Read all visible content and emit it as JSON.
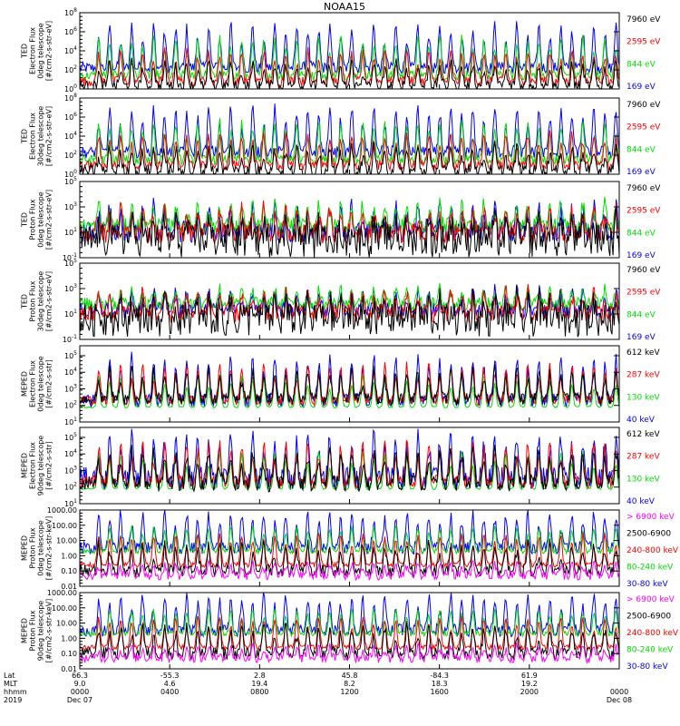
{
  "title": "NOAA15",
  "colors": {
    "black": "#000000",
    "red": "#ff0000",
    "green": "#00dd00",
    "blue": "#0000ff",
    "magenta": "#ff00ff"
  },
  "chart_data": {
    "type": "line",
    "x_ticks": [
      {
        "lat": "66.3",
        "mlt": "9.0",
        "hhmm": "0000",
        "date": "Dec 07"
      },
      {
        "lat": "-55.3",
        "mlt": "4.6",
        "hhmm": "0400",
        "date": ""
      },
      {
        "lat": "2.8",
        "mlt": "19.4",
        "hhmm": "0800",
        "date": ""
      },
      {
        "lat": "45.8",
        "mlt": "8.2",
        "hhmm": "1200",
        "date": ""
      },
      {
        "lat": "-84.3",
        "mlt": "18.3",
        "hhmm": "1600",
        "date": ""
      },
      {
        "lat": "61.9",
        "mlt": "19.2",
        "hhmm": "2000",
        "date": ""
      },
      {
        "lat": "",
        "mlt": "",
        "hhmm": "0000",
        "date": "Dec 08"
      }
    ],
    "row_labels": [
      "Lat",
      "MLT",
      "hhmm",
      "2019"
    ],
    "panels": [
      {
        "ylabel": [
          "TED",
          "Electron Flux",
          "0deg telescope",
          "[#/cm2-s-str-eV]"
        ],
        "yticks": [
          {
            "base": "10",
            "exp": "0"
          },
          {
            "base": "10",
            "exp": "2"
          },
          {
            "base": "10",
            "exp": "4"
          },
          {
            "base": "10",
            "exp": "6"
          },
          {
            "base": "10",
            "exp": "8"
          }
        ],
        "log_range": [
          0,
          8
        ],
        "series": [
          {
            "name": "7960 eV",
            "color": "#000000",
            "baseline": 0.3,
            "noise": 0.6,
            "peak": 2.5
          },
          {
            "name": "2595 eV",
            "color": "#ff0000",
            "baseline": 0.8,
            "noise": 0.5,
            "peak": 3.2
          },
          {
            "name": "844 eV",
            "color": "#00dd00",
            "baseline": 1.4,
            "noise": 0.5,
            "peak": 4.0
          },
          {
            "name": "169 eV",
            "color": "#0000ff",
            "baseline": 2.2,
            "noise": 0.6,
            "peak": 4.6
          }
        ]
      },
      {
        "ylabel": [
          "TED",
          "Electron Flux",
          "30deg telescope",
          "[#/cm2-s-str-eV]"
        ],
        "yticks": [
          {
            "base": "10",
            "exp": "0"
          },
          {
            "base": "10",
            "exp": "2"
          },
          {
            "base": "10",
            "exp": "4"
          },
          {
            "base": "10",
            "exp": "6"
          },
          {
            "base": "10",
            "exp": "8"
          }
        ],
        "log_range": [
          0,
          8
        ],
        "series": [
          {
            "name": "7960 eV",
            "color": "#000000",
            "baseline": 0.3,
            "noise": 0.7,
            "peak": 2.6
          },
          {
            "name": "2595 eV",
            "color": "#ff0000",
            "baseline": 0.9,
            "noise": 0.5,
            "peak": 3.3
          },
          {
            "name": "844 eV",
            "color": "#00dd00",
            "baseline": 1.5,
            "noise": 0.5,
            "peak": 4.0
          },
          {
            "name": "169 eV",
            "color": "#0000ff",
            "baseline": 2.3,
            "noise": 0.6,
            "peak": 4.7
          }
        ]
      },
      {
        "ylabel": [
          "TED",
          "Proton Flux",
          "0deg telescope",
          "[#/cm2-s-str-eV]"
        ],
        "yticks": [
          {
            "base": "10",
            "exp": "-1"
          },
          {
            "base": "10",
            "exp": "1"
          },
          {
            "base": "10",
            "exp": "3"
          },
          {
            "base": "10",
            "exp": "5"
          }
        ],
        "log_range": [
          -1,
          5
        ],
        "series": [
          {
            "name": "7960 eV",
            "color": "#000000",
            "baseline": 0.3,
            "noise": 1.3,
            "peak": 1.5
          },
          {
            "name": "2595 eV",
            "color": "#ff0000",
            "baseline": 0.9,
            "noise": 0.8,
            "peak": 1.9
          },
          {
            "name": "844 eV",
            "color": "#00dd00",
            "baseline": 1.5,
            "noise": 0.6,
            "peak": 1.8
          },
          {
            "name": "169 eV",
            "color": "#0000ff",
            "baseline": 1.0,
            "noise": 0.8,
            "peak": 2.1
          }
        ]
      },
      {
        "ylabel": [
          "TED",
          "Proton Flux",
          "30deg telescope",
          "[#/cm2-s-str-eV]"
        ],
        "yticks": [
          {
            "base": "10",
            "exp": "-1"
          },
          {
            "base": "10",
            "exp": "1"
          },
          {
            "base": "10",
            "exp": "3"
          },
          {
            "base": "10",
            "exp": "5"
          }
        ],
        "log_range": [
          -1,
          5
        ],
        "series": [
          {
            "name": "7960 eV",
            "color": "#000000",
            "baseline": 0.5,
            "noise": 1.3,
            "peak": 1.5
          },
          {
            "name": "2595 eV",
            "color": "#ff0000",
            "baseline": 1.0,
            "noise": 0.7,
            "peak": 1.7
          },
          {
            "name": "844 eV",
            "color": "#00dd00",
            "baseline": 1.8,
            "noise": 0.5,
            "peak": 1.2
          },
          {
            "name": "169 eV",
            "color": "#0000ff",
            "baseline": 1.3,
            "noise": 0.6,
            "peak": 1.6
          }
        ]
      },
      {
        "ylabel": [
          "MEPED",
          "Electron Flux",
          "0deg telescope",
          "[#/cm2-s-str]"
        ],
        "yticks": [
          {
            "base": "10",
            "exp": "1"
          },
          {
            "base": "10",
            "exp": "2"
          },
          {
            "base": "10",
            "exp": "3"
          },
          {
            "base": "10",
            "exp": "4"
          },
          {
            "base": "10",
            "exp": "5"
          }
        ],
        "log_range": [
          1,
          5.6
        ],
        "series": [
          {
            "name": "612 keV",
            "color": "#000000",
            "baseline": 2.4,
            "noise": 0.35,
            "peak": 1.8
          },
          {
            "name": "287 keV",
            "color": "#ff0000",
            "baseline": 2.3,
            "noise": 0.3,
            "peak": 2.2
          },
          {
            "name": "130 keV",
            "color": "#00dd00",
            "baseline": 1.9,
            "noise": 0.05,
            "peak": 2.0
          },
          {
            "name": "40 keV",
            "color": "#0000ff",
            "baseline": 2.3,
            "noise": 0.4,
            "peak": 2.6
          }
        ]
      },
      {
        "ylabel": [
          "MEPED",
          "Electron Flux",
          "90deg telescope",
          "[#/cm2-s-str]"
        ],
        "yticks": [
          {
            "base": "10",
            "exp": "1"
          },
          {
            "base": "10",
            "exp": "2"
          },
          {
            "base": "10",
            "exp": "3"
          },
          {
            "base": "10",
            "exp": "4"
          },
          {
            "base": "10",
            "exp": "5"
          }
        ],
        "log_range": [
          1,
          5.6
        ],
        "series": [
          {
            "name": "612 keV",
            "color": "#000000",
            "baseline": 2.2,
            "noise": 0.5,
            "peak": 2.0
          },
          {
            "name": "287 keV",
            "color": "#ff0000",
            "baseline": 2.3,
            "noise": 0.4,
            "peak": 2.4
          },
          {
            "name": "130 keV",
            "color": "#00dd00",
            "baseline": 1.9,
            "noise": 0.05,
            "peak": 2.3
          },
          {
            "name": "40 keV",
            "color": "#0000ff",
            "baseline": 2.5,
            "noise": 0.7,
            "peak": 2.6
          }
        ]
      },
      {
        "ylabel": [
          "MEPED",
          "Proton Flux",
          "0deg telescope",
          "[#/cm2-s-str-keV]"
        ],
        "yticks": [
          {
            "base": "0.01"
          },
          {
            "base": "0.10"
          },
          {
            "base": "1.00"
          },
          {
            "base": "10.00"
          },
          {
            "base": "100.00"
          },
          {
            "base": "1000.00"
          }
        ],
        "log_range": [
          -2,
          3
        ],
        "series": [
          {
            "name": "> 6900 keV",
            "color": "#ff00ff",
            "baseline": -1.3,
            "noise": 0.3,
            "peak": 0.8
          },
          {
            "name": "2500-6900",
            "color": "#000000",
            "baseline": -1.0,
            "noise": 0.4,
            "peak": 1.8
          },
          {
            "name": "240-800 keV",
            "color": "#ff0000",
            "baseline": -0.6,
            "noise": 0.15,
            "peak": 2.0
          },
          {
            "name": "80-240 keV",
            "color": "#00dd00",
            "baseline": 0.3,
            "noise": 0.15,
            "peak": 1.6
          },
          {
            "name": "30-80 keV",
            "color": "#0000ff",
            "baseline": 0.5,
            "noise": 0.4,
            "peak": 2.3
          }
        ]
      },
      {
        "ylabel": [
          "MEPED",
          "Proton Flux",
          "90deg telescope",
          "[#/cm2-s-str-keV]"
        ],
        "yticks": [
          {
            "base": "0.01"
          },
          {
            "base": "0.10"
          },
          {
            "base": "1.00"
          },
          {
            "base": "10.00"
          },
          {
            "base": "100.00"
          },
          {
            "base": "1000.00"
          }
        ],
        "log_range": [
          -2,
          3
        ],
        "series": [
          {
            "name": "> 6900 keV",
            "color": "#ff00ff",
            "baseline": -1.3,
            "noise": 0.3,
            "peak": 0.8
          },
          {
            "name": "2500-6900",
            "color": "#000000",
            "baseline": -1.0,
            "noise": 0.4,
            "peak": 1.8
          },
          {
            "name": "240-800 keV",
            "color": "#ff0000",
            "baseline": -0.6,
            "noise": 0.15,
            "peak": 2.0
          },
          {
            "name": "80-240 keV",
            "color": "#00dd00",
            "baseline": 0.3,
            "noise": 0.15,
            "peak": 1.6
          },
          {
            "name": "30-80 keV",
            "color": "#0000ff",
            "baseline": 0.5,
            "noise": 0.4,
            "peak": 2.3
          }
        ]
      }
    ]
  }
}
